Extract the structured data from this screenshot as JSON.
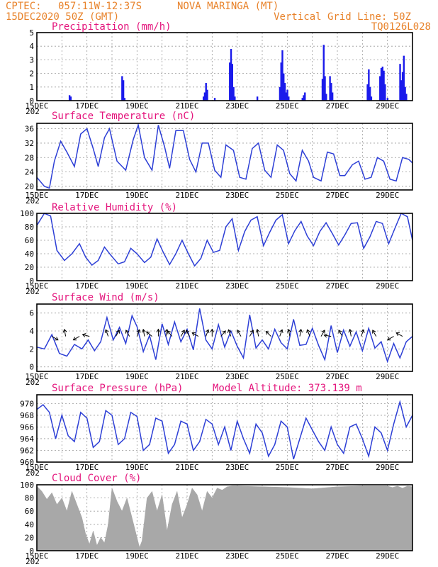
{
  "header": {
    "line1_left": "CPTEC:",
    "line1_coords": "057:11W-12:37S",
    "line1_station": "NOVA MARINGA (MT)",
    "line2_left": "15DEC2020 50Z (GMT)",
    "line2_right": "Vertical Grid Line: 50Z",
    "line3_right": "TQ0126L028"
  },
  "x_axis": {
    "day_labels": [
      "15DEC",
      "17DEC",
      "19DEC",
      "21DEC",
      "23DEC",
      "25DEC",
      "27DEC",
      "29DEC"
    ],
    "year_fragment": "202",
    "day_range": [
      15,
      30
    ]
  },
  "colors": {
    "line": "#2d3fd6",
    "bar": "#1a1aeb",
    "cloud": "#a8a8a8",
    "title": "#e4147c",
    "header": "#e8822a"
  },
  "chart_data": [
    {
      "id": "precip",
      "type": "bar",
      "title": "Precipitation (mm/h)",
      "ylim": [
        0,
        5
      ],
      "yticks": [
        0,
        1,
        2,
        3,
        4,
        5
      ],
      "grid": true,
      "series": [
        {
          "x": [
            16.3,
            16.35,
            18.4,
            18.45,
            18.5,
            21.65,
            21.7,
            21.75,
            21.8,
            22.1,
            22.7,
            22.75,
            22.8,
            22.85,
            22.9,
            23.8,
            24.7,
            24.75,
            24.8,
            24.85,
            24.9,
            24.95,
            25.0,
            25.05,
            25.6,
            25.65,
            25.7,
            26.4,
            26.45,
            26.5,
            26.55,
            26.7,
            26.75,
            26.8,
            28.2,
            28.25,
            28.3,
            28.35,
            28.7,
            28.75,
            28.8,
            28.85,
            28.9,
            29.0,
            29.5,
            29.55,
            29.6,
            29.65,
            29.7,
            29.75
          ],
          "values": [
            0.4,
            0.3,
            1.8,
            1.5,
            0.2,
            0.3,
            0.6,
            1.3,
            0.8,
            0.2,
            2.8,
            3.8,
            2.7,
            1.0,
            0.3,
            0.3,
            1.0,
            2.8,
            3.7,
            2.0,
            1.3,
            0.6,
            0.8,
            0.3,
            0.2,
            0.4,
            0.6,
            1.6,
            4.1,
            1.8,
            0.5,
            1.8,
            1.3,
            0.6,
            1.2,
            2.3,
            1.0,
            0.3,
            1.8,
            2.4,
            2.5,
            2.2,
            1.2,
            0.2,
            2.7,
            1.5,
            2.1,
            3.3,
            1.0,
            0.5
          ]
        }
      ]
    },
    {
      "id": "temp",
      "type": "line",
      "title": "Surface Temperature (nC)",
      "ylim": [
        19,
        37.5
      ],
      "yticks": [
        20,
        24,
        28,
        32,
        36
      ],
      "grid": true,
      "series": [
        {
          "x": [
            15.0,
            15.3,
            15.5,
            15.7,
            15.95,
            16.2,
            16.5,
            16.75,
            17.0,
            17.25,
            17.45,
            17.7,
            17.9,
            18.2,
            18.55,
            18.85,
            19.05,
            19.3,
            19.6,
            19.85,
            20.1,
            20.3,
            20.55,
            20.85,
            21.1,
            21.35,
            21.6,
            21.85,
            22.1,
            22.35,
            22.55,
            22.85,
            23.1,
            23.35,
            23.6,
            23.85,
            24.1,
            24.35,
            24.6,
            24.85,
            25.1,
            25.35,
            25.6,
            25.85,
            26.05,
            26.35,
            26.6,
            26.85,
            27.1,
            27.3,
            27.6,
            27.85,
            28.1,
            28.35,
            28.6,
            28.85,
            29.1,
            29.35,
            29.6,
            29.85,
            30.0
          ],
          "values": [
            22.5,
            20.0,
            19.5,
            27.0,
            32.5,
            29.5,
            25.5,
            34.5,
            36.0,
            30.5,
            25.5,
            33.5,
            36.0,
            27.0,
            24.5,
            33.0,
            37.0,
            28.0,
            24.5,
            37.0,
            31.0,
            25.0,
            35.5,
            35.5,
            27.5,
            24.0,
            32.0,
            32.0,
            24.5,
            22.5,
            31.5,
            30.0,
            22.5,
            22.0,
            30.5,
            32.0,
            24.5,
            22.5,
            31.5,
            30.0,
            23.5,
            21.5,
            30.0,
            27.0,
            22.5,
            21.5,
            29.5,
            29.0,
            23.0,
            23.0,
            26.0,
            27.0,
            22.0,
            22.5,
            28.0,
            27.0,
            22.0,
            21.5,
            28.0,
            27.5,
            26.5
          ]
        }
      ]
    },
    {
      "id": "rh",
      "type": "line",
      "title": "Relative Humidity (%)",
      "ylim": [
        0,
        100
      ],
      "yticks": [
        0,
        20,
        40,
        60,
        80,
        100
      ],
      "grid": true,
      "series": [
        {
          "x": [
            15.0,
            15.3,
            15.55,
            15.8,
            16.1,
            16.4,
            16.7,
            16.95,
            17.2,
            17.45,
            17.7,
            17.95,
            18.25,
            18.5,
            18.75,
            19.0,
            19.3,
            19.55,
            19.8,
            20.05,
            20.3,
            20.55,
            20.8,
            21.05,
            21.3,
            21.55,
            21.8,
            22.05,
            22.3,
            22.55,
            22.8,
            23.05,
            23.3,
            23.55,
            23.8,
            24.05,
            24.3,
            24.55,
            24.8,
            25.05,
            25.3,
            25.55,
            25.8,
            26.05,
            26.3,
            26.55,
            26.8,
            27.05,
            27.3,
            27.55,
            27.8,
            28.05,
            28.3,
            28.55,
            28.8,
            29.05,
            29.3,
            29.55,
            29.8,
            30.0
          ],
          "values": [
            82,
            100,
            96,
            45,
            30,
            40,
            55,
            35,
            23,
            30,
            50,
            38,
            25,
            28,
            48,
            40,
            27,
            35,
            62,
            42,
            24,
            40,
            60,
            40,
            22,
            33,
            60,
            42,
            45,
            80,
            92,
            45,
            73,
            90,
            95,
            52,
            72,
            90,
            98,
            55,
            74,
            88,
            66,
            52,
            73,
            86,
            70,
            53,
            68,
            85,
            86,
            48,
            65,
            88,
            85,
            55,
            78,
            100,
            95,
            60
          ]
        }
      ]
    },
    {
      "id": "wind",
      "type": "line",
      "title": "Surface Wind (m/s)",
      "ylim": [
        -0.5,
        7
      ],
      "yticks": [
        0,
        2,
        4,
        6
      ],
      "grid": true,
      "series": [
        {
          "x": [
            15.0,
            15.3,
            15.6,
            15.9,
            16.2,
            16.5,
            16.8,
            17.05,
            17.3,
            17.55,
            17.8,
            18.05,
            18.3,
            18.55,
            18.8,
            19.0,
            19.25,
            19.5,
            19.75,
            20.0,
            20.25,
            20.5,
            20.75,
            21.0,
            21.25,
            21.5,
            21.75,
            22.0,
            22.25,
            22.5,
            22.75,
            23.0,
            23.25,
            23.5,
            23.75,
            24.0,
            24.25,
            24.5,
            24.75,
            25.0,
            25.25,
            25.5,
            25.75,
            26.0,
            26.25,
            26.5,
            26.75,
            27.0,
            27.25,
            27.5,
            27.75,
            28.0,
            28.25,
            28.5,
            28.75,
            29.0,
            29.25,
            29.5,
            29.75,
            30.0
          ],
          "values": [
            2.2,
            2.0,
            3.6,
            1.5,
            1.2,
            2.5,
            2.0,
            3.0,
            1.8,
            2.8,
            5.5,
            3.0,
            4.4,
            2.6,
            5.7,
            4.5,
            1.7,
            3.5,
            0.8,
            4.8,
            2.5,
            5.0,
            2.8,
            4.2,
            1.9,
            6.5,
            3.0,
            2.0,
            4.7,
            2.2,
            4.0,
            2.3,
            1.0,
            5.8,
            2.1,
            3.0,
            2.0,
            4.2,
            2.7,
            2.0,
            5.3,
            2.4,
            2.5,
            4.3,
            2.4,
            0.8,
            4.6,
            1.6,
            4.1,
            2.3,
            3.9,
            1.8,
            4.3,
            2.1,
            2.8,
            0.6,
            2.6,
            1.0,
            2.8,
            3.4
          ]
        }
      ],
      "arrows": [
        {
          "x": 15.6,
          "dir": 300
        },
        {
          "x": 16.15,
          "dir": 170
        },
        {
          "x": 16.7,
          "dir": 60
        },
        {
          "x": 17.1,
          "dir": 105
        },
        {
          "x": 17.85,
          "dir": 160
        },
        {
          "x": 18.15,
          "dir": 210
        },
        {
          "x": 18.7,
          "dir": 150
        },
        {
          "x": 19.0,
          "dir": 200
        },
        {
          "x": 19.3,
          "dir": 170
        },
        {
          "x": 19.6,
          "dir": 130
        },
        {
          "x": 19.85,
          "dir": 180
        },
        {
          "x": 20.15,
          "dir": 190
        },
        {
          "x": 20.4,
          "dir": 140
        },
        {
          "x": 20.75,
          "dir": 210
        },
        {
          "x": 21.1,
          "dir": 150
        },
        {
          "x": 21.45,
          "dir": 120
        },
        {
          "x": 21.75,
          "dir": 200
        },
        {
          "x": 22.0,
          "dir": 180
        },
        {
          "x": 22.35,
          "dir": 220
        },
        {
          "x": 22.75,
          "dir": 160
        },
        {
          "x": 23.15,
          "dir": 150
        },
        {
          "x": 23.5,
          "dir": 210
        },
        {
          "x": 23.85,
          "dir": 170
        },
        {
          "x": 24.35,
          "dir": 135
        },
        {
          "x": 24.7,
          "dir": 200
        },
        {
          "x": 25.1,
          "dir": 170
        },
        {
          "x": 25.5,
          "dir": 190
        },
        {
          "x": 25.9,
          "dir": 160
        },
        {
          "x": 26.35,
          "dir": 210
        },
        {
          "x": 26.75,
          "dir": 100
        },
        {
          "x": 27.2,
          "dir": 150
        },
        {
          "x": 27.55,
          "dir": 170
        },
        {
          "x": 27.95,
          "dir": 200
        },
        {
          "x": 28.55,
          "dir": 150
        },
        {
          "x": 29.25,
          "dir": 60
        },
        {
          "x": 29.6,
          "dir": 120
        }
      ]
    },
    {
      "id": "pres",
      "type": "line",
      "title": "Surface Pressure (hPa)",
      "annotation": "Model Altitude: 373.139 m",
      "ylim": [
        960,
        971.5
      ],
      "yticks": [
        960,
        962,
        964,
        966,
        968,
        970
      ],
      "grid": true,
      "series": [
        {
          "x": [
            15.0,
            15.25,
            15.5,
            15.75,
            16.0,
            16.25,
            16.5,
            16.75,
            17.0,
            17.25,
            17.5,
            17.75,
            18.0,
            18.25,
            18.5,
            18.75,
            19.0,
            19.25,
            19.5,
            19.75,
            20.0,
            20.25,
            20.5,
            20.75,
            21.0,
            21.25,
            21.5,
            21.75,
            22.0,
            22.25,
            22.5,
            22.75,
            23.0,
            23.25,
            23.5,
            23.75,
            24.0,
            24.25,
            24.5,
            24.75,
            25.0,
            25.25,
            25.5,
            25.75,
            26.0,
            26.25,
            26.5,
            26.75,
            27.0,
            27.25,
            27.5,
            27.75,
            28.0,
            28.25,
            28.5,
            28.75,
            29.0,
            29.25,
            29.5,
            29.75,
            30.0
          ],
          "values": [
            969.0,
            969.8,
            968.5,
            964.0,
            968.0,
            964.5,
            963.5,
            968.5,
            967.5,
            962.5,
            963.5,
            968.8,
            968.0,
            963.0,
            964.0,
            968.5,
            967.8,
            962.0,
            963.0,
            967.5,
            967.0,
            961.5,
            963.0,
            967.0,
            966.5,
            962.0,
            963.5,
            967.3,
            966.5,
            963.0,
            966.0,
            962.0,
            967.0,
            964.0,
            961.5,
            966.5,
            965.0,
            961.0,
            963.0,
            967.0,
            966.0,
            960.5,
            964.0,
            967.5,
            965.5,
            963.5,
            962.0,
            966.0,
            963.0,
            961.5,
            966.0,
            966.5,
            964.0,
            961.0,
            966.0,
            965.0,
            962.0,
            966.5,
            970.3,
            966.0,
            968.0
          ]
        }
      ]
    },
    {
      "id": "cloud",
      "type": "area",
      "title": "Cloud Cover (%)",
      "ylim": [
        0,
        100
      ],
      "yticks": [
        0,
        20,
        40,
        60,
        80,
        100
      ],
      "grid": true,
      "series": [
        {
          "x": [
            15.0,
            15.2,
            15.4,
            15.6,
            15.8,
            16.0,
            16.2,
            16.4,
            16.6,
            16.8,
            16.95,
            17.1,
            17.25,
            17.4,
            17.55,
            17.7,
            17.85,
            18.0,
            18.2,
            18.4,
            18.6,
            18.8,
            19.0,
            19.1,
            19.2,
            19.4,
            19.6,
            19.8,
            20.0,
            20.2,
            20.4,
            20.6,
            20.8,
            21.0,
            21.2,
            21.4,
            21.6,
            21.8,
            22.0,
            22.2,
            22.4,
            22.6,
            22.8,
            23.0,
            24.0,
            25.0,
            26.0,
            27.0,
            28.0,
            29.0,
            29.2,
            29.4,
            29.6,
            29.8,
            30.0
          ],
          "values": [
            98,
            90,
            78,
            88,
            70,
            80,
            60,
            90,
            70,
            50,
            25,
            10,
            30,
            8,
            20,
            12,
            40,
            95,
            75,
            60,
            80,
            50,
            20,
            5,
            15,
            80,
            90,
            60,
            85,
            30,
            70,
            90,
            50,
            70,
            95,
            85,
            60,
            90,
            80,
            95,
            92,
            97,
            98,
            98,
            97,
            96,
            94,
            97,
            98,
            98,
            96,
            98,
            95,
            98,
            97
          ]
        }
      ]
    }
  ]
}
